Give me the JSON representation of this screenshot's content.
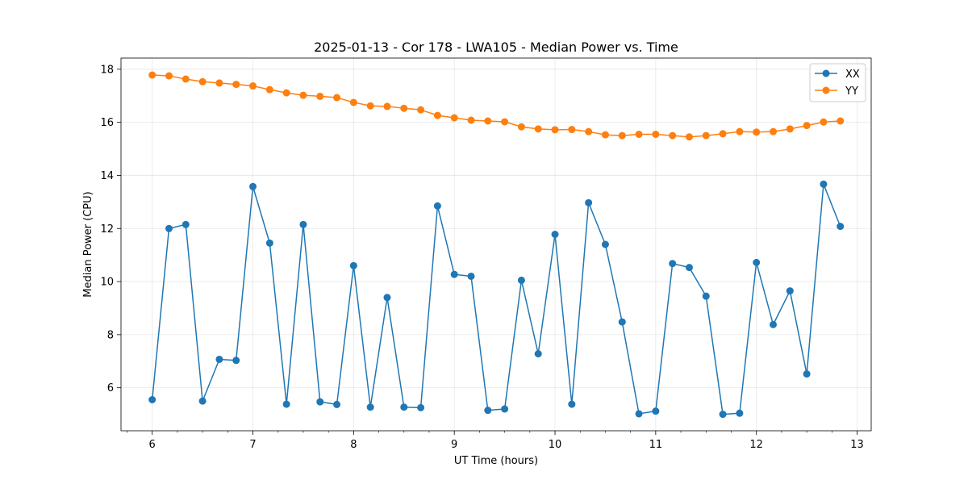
{
  "chart_data": {
    "type": "line",
    "title": "2025-01-13 - Cor 178 - LWA105 - Median Power vs. Time",
    "xlabel": "UT Time (hours)",
    "ylabel": "Median Power (CPU)",
    "xlim": [
      5.69,
      13.14
    ],
    "ylim": [
      4.38,
      18.42
    ],
    "x_ticks": [
      6,
      7,
      8,
      9,
      10,
      11,
      12,
      13
    ],
    "x_tick_labels": [
      "6",
      "7",
      "8",
      "9",
      "10",
      "11",
      "12",
      "13"
    ],
    "x_minor_step": 0.25,
    "y_ticks": [
      6,
      8,
      10,
      12,
      14,
      16,
      18
    ],
    "y_tick_labels": [
      "6",
      "8",
      "10",
      "12",
      "14",
      "16",
      "18"
    ],
    "grid": true,
    "legend_position": "top-right",
    "x": [
      6.0,
      6.1667,
      6.3333,
      6.5,
      6.6667,
      6.8333,
      7.0,
      7.1667,
      7.3333,
      7.5,
      7.6667,
      7.8333,
      8.0,
      8.1667,
      8.3333,
      8.5,
      8.6667,
      8.8333,
      9.0,
      9.1667,
      9.3333,
      9.5,
      9.6667,
      9.8333,
      10.0,
      10.1667,
      10.3333,
      10.5,
      10.6667,
      10.8333,
      11.0,
      11.1667,
      11.3333,
      11.5,
      11.6667,
      11.8333,
      12.0,
      12.1667,
      12.3333,
      12.5,
      12.6667,
      12.8333
    ],
    "series": [
      {
        "name": "XX",
        "color": "#1f77b4",
        "values": [
          5.55,
          12.0,
          12.15,
          5.5,
          7.07,
          7.03,
          13.58,
          11.45,
          5.38,
          12.15,
          5.47,
          5.37,
          10.6,
          5.27,
          9.4,
          5.27,
          5.25,
          12.85,
          10.27,
          10.2,
          5.15,
          5.2,
          10.05,
          7.28,
          11.78,
          5.38,
          12.97,
          11.4,
          8.48,
          5.02,
          5.12,
          10.68,
          10.53,
          9.45,
          5.0,
          5.04,
          10.72,
          8.38,
          9.65,
          6.52,
          13.67,
          12.08
        ]
      },
      {
        "name": "YY",
        "color": "#ff7f0e",
        "values": [
          17.78,
          17.75,
          17.63,
          17.53,
          17.48,
          17.43,
          17.37,
          17.23,
          17.11,
          17.02,
          16.98,
          16.93,
          16.75,
          16.62,
          16.6,
          16.53,
          16.47,
          16.26,
          16.17,
          16.08,
          16.05,
          16.02,
          15.83,
          15.75,
          15.72,
          15.73,
          15.65,
          15.53,
          15.5,
          15.55,
          15.55,
          15.5,
          15.45,
          15.5,
          15.57,
          15.65,
          15.63,
          15.65,
          15.75,
          15.88,
          16.01,
          16.05
        ]
      }
    ]
  }
}
